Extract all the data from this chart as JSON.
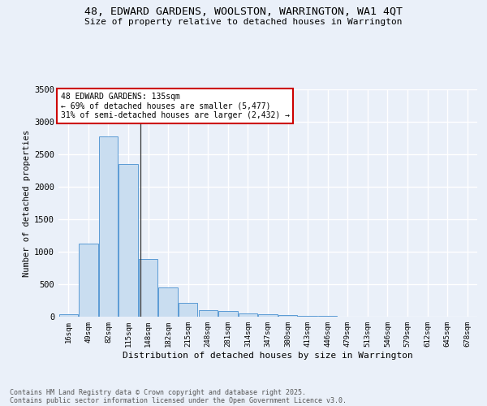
{
  "title_line1": "48, EDWARD GARDENS, WOOLSTON, WARRINGTON, WA1 4QT",
  "title_line2": "Size of property relative to detached houses in Warrington",
  "xlabel": "Distribution of detached houses by size in Warrington",
  "ylabel": "Number of detached properties",
  "categories": [
    "16sqm",
    "49sqm",
    "82sqm",
    "115sqm",
    "148sqm",
    "182sqm",
    "215sqm",
    "248sqm",
    "281sqm",
    "314sqm",
    "347sqm",
    "380sqm",
    "413sqm",
    "446sqm",
    "479sqm",
    "513sqm",
    "546sqm",
    "579sqm",
    "612sqm",
    "645sqm",
    "678sqm"
  ],
  "values": [
    40,
    1120,
    2780,
    2350,
    890,
    450,
    210,
    100,
    90,
    55,
    35,
    25,
    15,
    8,
    4,
    3,
    2,
    1,
    1,
    1,
    1
  ],
  "bar_color": "#c9ddf0",
  "bar_edgecolor": "#5b9bd5",
  "background_color": "#eaf0f9",
  "grid_color": "#ffffff",
  "annotation_line1": "48 EDWARD GARDENS: 135sqm",
  "annotation_line2": "← 69% of detached houses are smaller (5,477)",
  "annotation_line3": "31% of semi-detached houses are larger (2,432) →",
  "annotation_box_color": "#ffffff",
  "annotation_border_color": "#cc0000",
  "ylim": [
    0,
    3500
  ],
  "footnote_line1": "Contains HM Land Registry data © Crown copyright and database right 2025.",
  "footnote_line2": "Contains public sector information licensed under the Open Government Licence v3.0."
}
